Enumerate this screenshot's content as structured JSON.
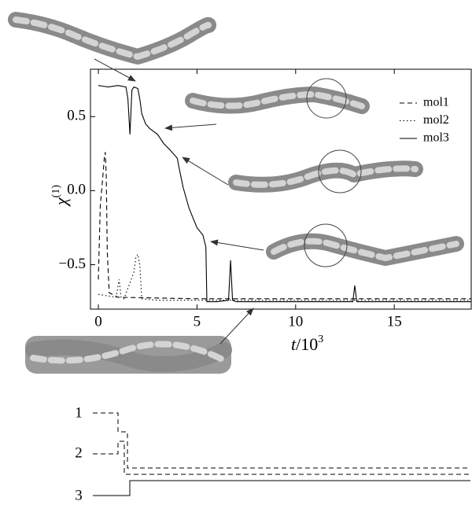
{
  "chart_data": {
    "type": "line",
    "xlabel": "t",
    "xlabel_tail": "/10",
    "xlabel_sup": "3",
    "ylabel": "χ",
    "ylabel_sup": "(1)",
    "xlim": [
      -0.4,
      18.9
    ],
    "ylim": [
      -0.8,
      0.82
    ],
    "xticks": [
      0,
      5,
      10,
      15
    ],
    "yticks": [
      0.5,
      {
        "value": 0,
        "label": "0.0"
      },
      {
        "value": -0.5,
        "label": "−0.5"
      }
    ],
    "legend": "upper right",
    "series": [
      {
        "name": "mol1",
        "color": "#000000",
        "dash": "dashed",
        "x": [
          0,
          0.1,
          0.2,
          0.3,
          0.35,
          0.4,
          0.45,
          0.55,
          1,
          5,
          10,
          15,
          18.9
        ],
        "values": [
          -0.6,
          -0.1,
          0.05,
          0.22,
          0.26,
          0.1,
          -0.4,
          -0.69,
          -0.72,
          -0.73,
          -0.73,
          -0.73,
          -0.73
        ]
      },
      {
        "name": "mol2",
        "color": "#000000",
        "dash": "dotted",
        "x": [
          0,
          0.9,
          1.05,
          1.15,
          1.3,
          1.8,
          1.9,
          2.0,
          2.1,
          2.2,
          3,
          5,
          10,
          15,
          18.9
        ],
        "values": [
          -0.7,
          -0.72,
          -0.6,
          -0.72,
          -0.73,
          -0.55,
          -0.45,
          -0.43,
          -0.5,
          -0.73,
          -0.74,
          -0.74,
          -0.74,
          -0.74,
          -0.74
        ]
      },
      {
        "name": "mol3",
        "color": "#000000",
        "dash": "solid",
        "x": [
          0,
          0.5,
          1,
          1.4,
          1.5,
          1.6,
          1.7,
          1.8,
          2.0,
          2.1,
          2.2,
          2.4,
          2.6,
          3.0,
          3.3,
          3.6,
          4.0,
          4.1,
          4.3,
          4.6,
          5.0,
          5.3,
          5.45,
          5.5,
          6.0,
          6.6,
          6.7,
          6.8,
          7.0,
          10,
          12.9,
          13.0,
          13.1,
          15,
          18.9
        ],
        "values": [
          0.71,
          0.7,
          0.71,
          0.7,
          0.62,
          0.38,
          0.68,
          0.7,
          0.69,
          0.62,
          0.52,
          0.45,
          0.42,
          0.38,
          0.32,
          0.28,
          0.22,
          0.15,
          0.02,
          -0.12,
          -0.25,
          -0.3,
          -0.38,
          -0.75,
          -0.75,
          -0.74,
          -0.47,
          -0.74,
          -0.75,
          -0.75,
          -0.75,
          -0.64,
          -0.75,
          -0.75,
          -0.75
        ]
      }
    ]
  },
  "level_diagram": {
    "labels": [
      "1",
      "2",
      "3"
    ]
  }
}
